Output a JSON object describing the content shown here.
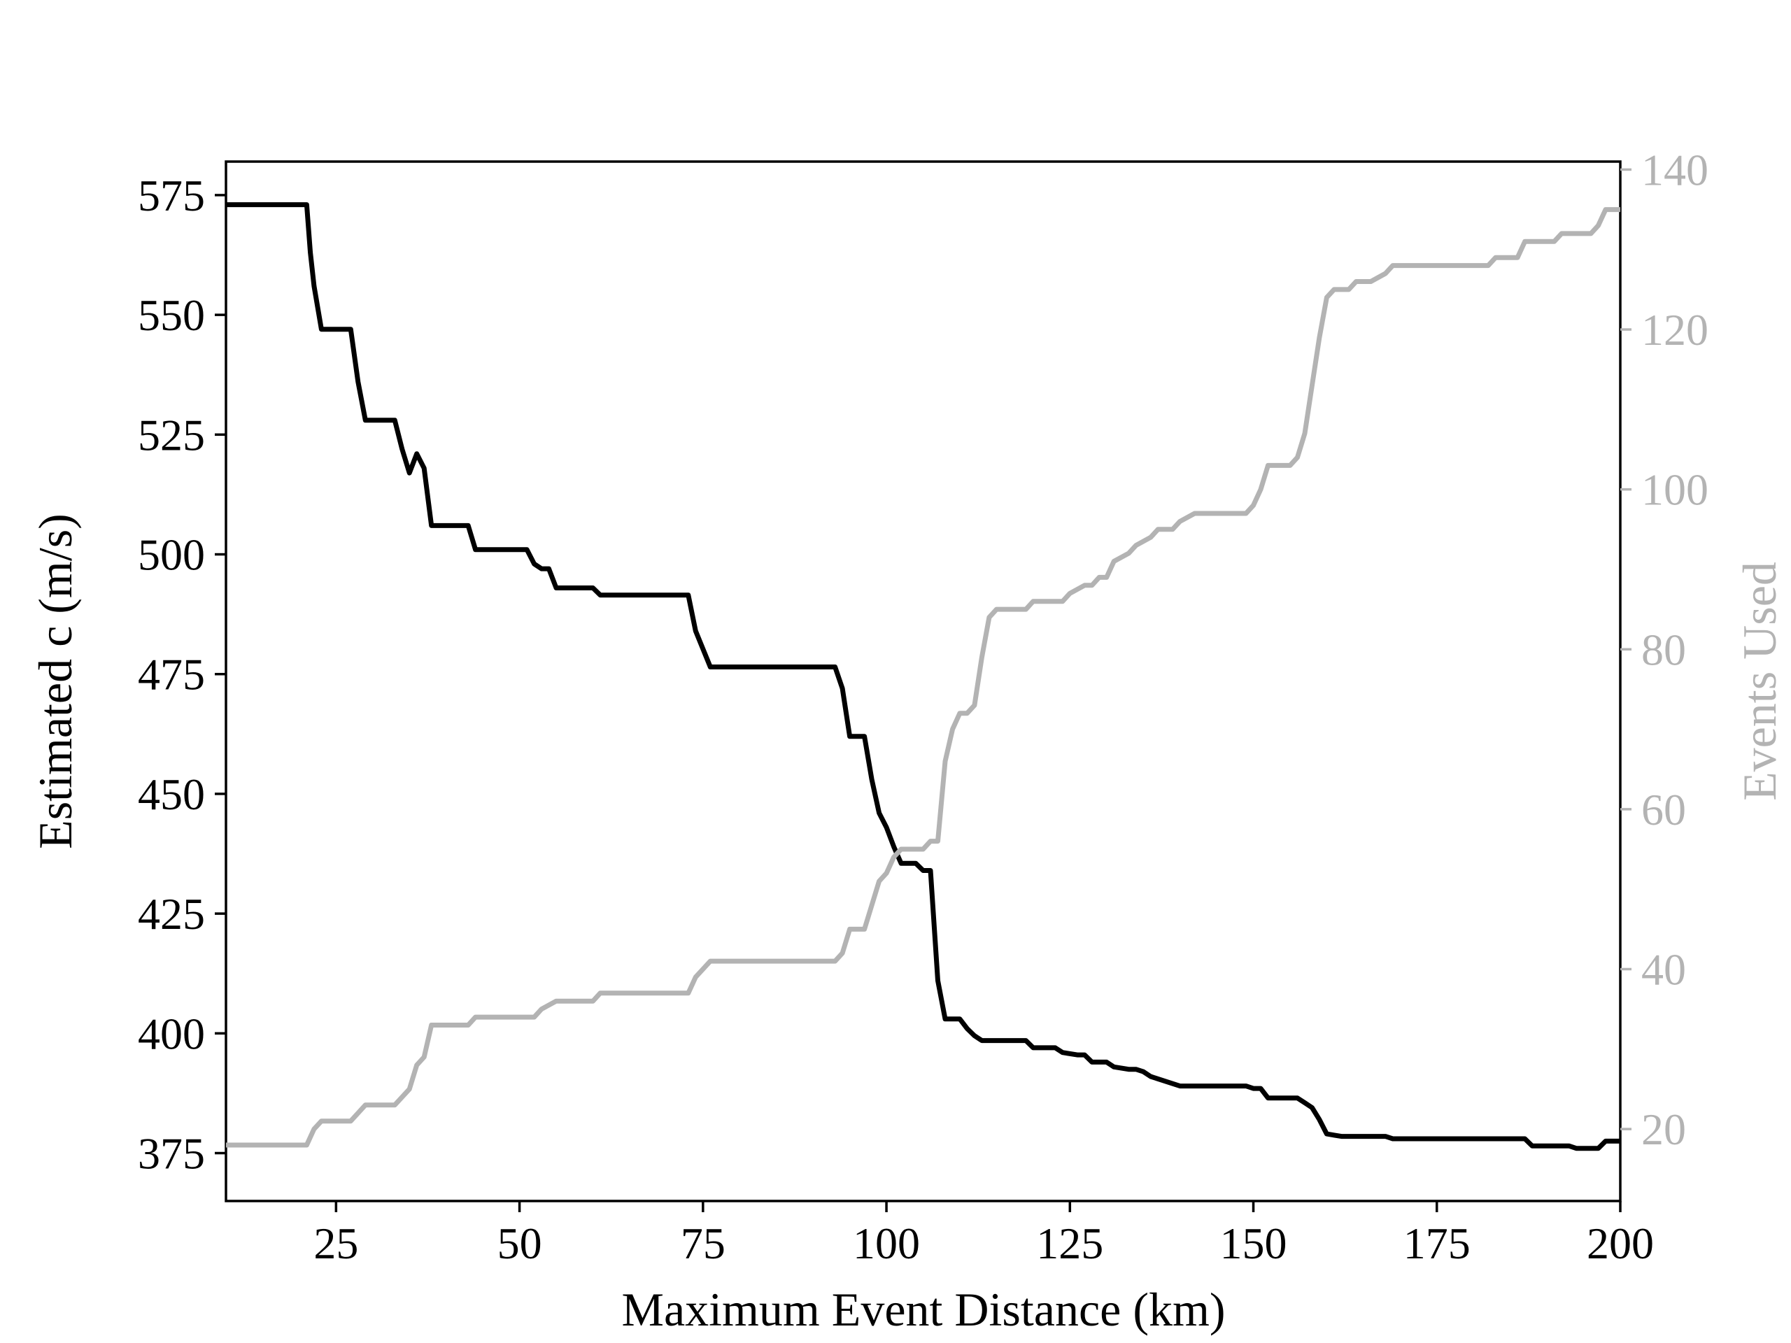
{
  "chart_data": {
    "type": "line",
    "title": "",
    "xlabel": "Maximum Event Distance (km)",
    "ylabel": "Estimated c (m/s)",
    "y2label": "Events Used",
    "xlim": [
      10,
      200
    ],
    "ylim": [
      365,
      582
    ],
    "y2lim": [
      11,
      141
    ],
    "x_ticks": [
      25,
      50,
      75,
      100,
      125,
      150,
      175,
      200
    ],
    "y_ticks": [
      375,
      400,
      425,
      450,
      475,
      500,
      525,
      550,
      575
    ],
    "y2_ticks": [
      20,
      40,
      60,
      80,
      100,
      120,
      140
    ],
    "grid": false,
    "legend": "none",
    "colors": {
      "c": "#000000",
      "events": "#b3b3b3",
      "events_axis": "#b3b3b3"
    },
    "series": [
      {
        "axis": "left",
        "color": "#000000",
        "x": [
          10,
          21,
          21.5,
          22,
          23,
          27,
          28,
          29,
          33,
          34,
          35,
          36,
          37,
          38,
          43,
          44,
          51,
          52,
          53,
          54,
          55,
          60,
          61,
          73,
          74,
          76,
          93,
          94,
          95,
          97,
          98,
          99,
          100,
          101,
          102,
          104,
          105,
          106,
          107,
          108,
          110,
          111,
          112,
          113,
          115,
          119,
          120,
          123,
          124,
          126,
          127,
          128,
          130,
          131,
          133,
          134,
          135,
          136,
          139,
          140,
          142,
          149,
          150,
          151,
          152,
          155,
          156,
          157,
          158,
          159,
          160,
          162,
          163,
          168,
          169,
          187,
          188,
          193,
          194,
          197,
          198,
          200
        ],
        "values": [
          573,
          573,
          563,
          556,
          547,
          547,
          536,
          528,
          528,
          522,
          517,
          521,
          518,
          506,
          506,
          501,
          501,
          498,
          497,
          497,
          493,
          493,
          491.5,
          491.5,
          484,
          476.5,
          476.5,
          472,
          462,
          462,
          453,
          446,
          443,
          439,
          435.5,
          435.5,
          434,
          434,
          411,
          403,
          403,
          401,
          399.5,
          398.5,
          398.5,
          398.5,
          397,
          397,
          396,
          395.5,
          395.5,
          394,
          394,
          393,
          392.5,
          392.5,
          392,
          391,
          389.5,
          389,
          389,
          389,
          388.5,
          388.5,
          386.5,
          386.5,
          386.5,
          385.5,
          384.5,
          382,
          379,
          378.5,
          378.5,
          378.5,
          378,
          378,
          376.5,
          376.5,
          376,
          376,
          377.5,
          377.5
        ]
      },
      {
        "axis": "right",
        "color": "#b3b3b3",
        "x": [
          10,
          21,
          22,
          23,
          27,
          29,
          33,
          35,
          36,
          37,
          38,
          43,
          44,
          52,
          53,
          55,
          60,
          61,
          73,
          74,
          76,
          93,
          94,
          95,
          97,
          98,
          99,
          100,
          101,
          102,
          105,
          106,
          107,
          108,
          109,
          110,
          111,
          112,
          113,
          114,
          115,
          119,
          120,
          124,
          125,
          127,
          128,
          129,
          130,
          131,
          133,
          134,
          136,
          137,
          139,
          140,
          142,
          149,
          150,
          151,
          152,
          155,
          156,
          157,
          158,
          159,
          160,
          161,
          163,
          164,
          166,
          168,
          169,
          182,
          183,
          186,
          187,
          188,
          191,
          192,
          195,
          196,
          197,
          198,
          200
        ],
        "values": [
          18,
          18,
          20,
          21,
          21,
          23,
          23,
          25,
          28,
          29,
          33,
          33,
          34,
          34,
          35,
          36,
          36,
          37,
          37,
          39,
          41,
          41,
          42,
          45,
          45,
          48,
          51,
          52,
          54,
          55,
          55,
          56,
          56,
          66,
          70,
          72,
          72,
          73,
          79,
          84,
          85,
          85,
          86,
          86,
          87,
          88,
          88,
          89,
          89,
          91,
          92,
          93,
          94,
          95,
          95,
          96,
          97,
          97,
          98,
          100,
          103,
          103,
          104,
          107,
          113,
          119,
          124,
          125,
          125,
          126,
          126,
          127,
          128,
          128,
          129,
          129,
          131,
          131,
          131,
          132,
          132,
          132,
          133,
          135,
          135
        ]
      }
    ]
  }
}
